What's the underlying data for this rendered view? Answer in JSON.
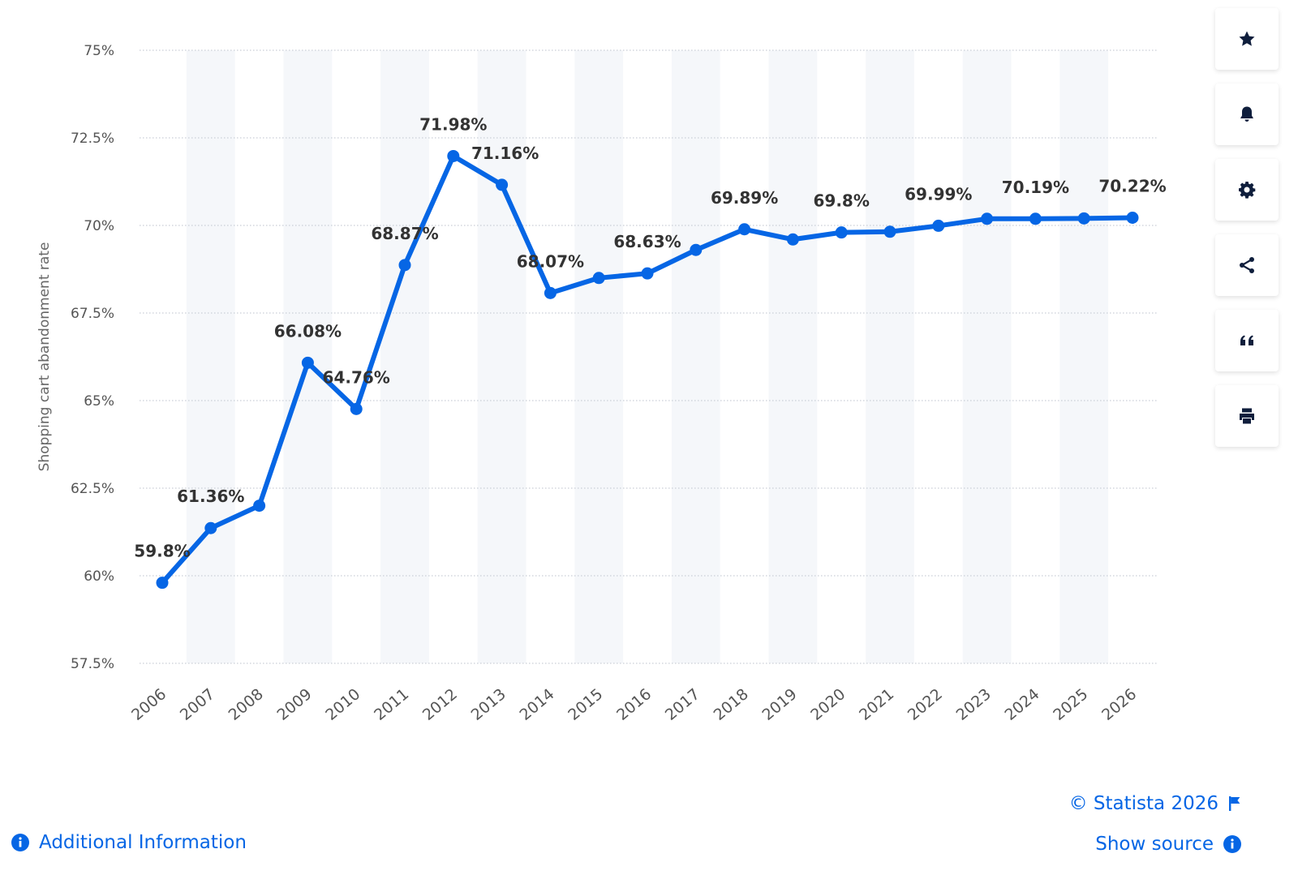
{
  "chart_data": {
    "type": "line",
    "title": "",
    "xlabel": "",
    "ylabel": "Shopping cart abandonment rate",
    "categories": [
      "2006",
      "2007",
      "2008",
      "2009",
      "2010",
      "2011",
      "2012",
      "2013",
      "2014",
      "2015",
      "2016",
      "2017",
      "2018",
      "2019",
      "2020",
      "2021",
      "2022",
      "2023",
      "2024",
      "2025",
      "2026"
    ],
    "series": [
      {
        "name": "Shopping cart abandonment rate",
        "values": [
          59.8,
          61.36,
          62.0,
          66.08,
          64.76,
          68.87,
          71.98,
          71.16,
          68.07,
          68.5,
          68.63,
          69.3,
          69.89,
          69.6,
          69.8,
          69.82,
          69.99,
          70.19,
          70.19,
          70.2,
          70.22
        ]
      }
    ],
    "data_labels": [
      "59.8%",
      "61.36%",
      "",
      "66.08%",
      "64.76%",
      "68.87%",
      "71.98%",
      "71.16%",
      "68.07%",
      "",
      "68.63%",
      "",
      "69.89%",
      "",
      "69.8%",
      "",
      "69.99%",
      "",
      "70.19%",
      "",
      "70.22%"
    ],
    "yticks": [
      57.5,
      60,
      62.5,
      65,
      67.5,
      70,
      72.5,
      75
    ],
    "ytick_labels": [
      "57.5%",
      "60%",
      "62.5%",
      "65%",
      "67.5%",
      "70%",
      "72.5%",
      "75%"
    ],
    "ylim": [
      57.5,
      75
    ],
    "grid": true,
    "line_color": "#0666e5"
  },
  "toolbar": {
    "buttons": [
      {
        "icon": "star-icon"
      },
      {
        "icon": "bell-icon"
      },
      {
        "icon": "gear-icon"
      },
      {
        "icon": "share-icon"
      },
      {
        "icon": "quote-icon"
      },
      {
        "icon": "print-icon"
      }
    ]
  },
  "footer": {
    "additional_info": "Additional Information",
    "copyright": "© Statista 2026",
    "show_source": "Show source"
  },
  "colors": {
    "accent": "#0666e5",
    "icon": "#0f1e3c",
    "band": "#f5f7fa"
  }
}
